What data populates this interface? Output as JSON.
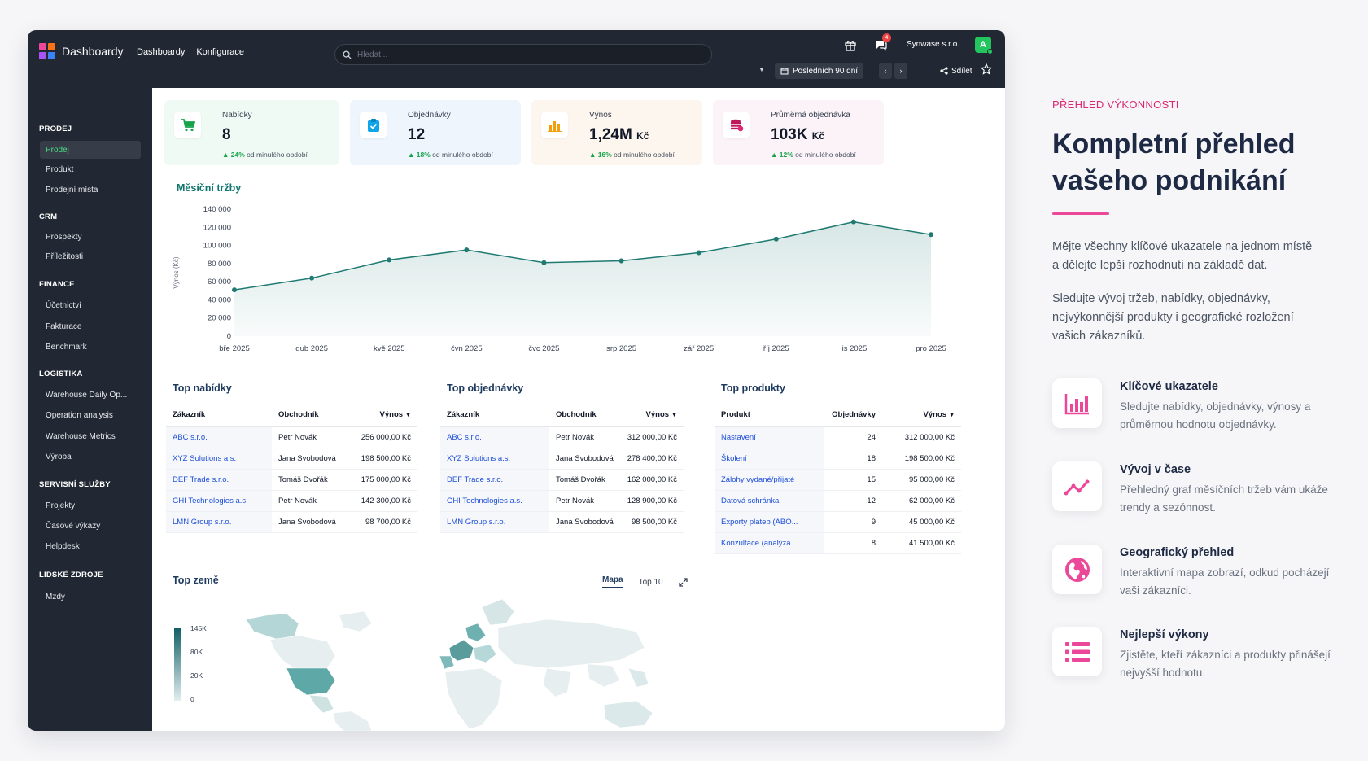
{
  "app": {
    "title": "Dashboardy",
    "nav": [
      "Dashboardy",
      "Konfigurace"
    ],
    "search_placeholder": "Hledat...",
    "messages_badge": "4",
    "company": "Synwase s.r.o.",
    "avatar_letter": "A",
    "period": "Posledních 90 dní",
    "share_label": "Sdílet"
  },
  "sidebar": {
    "groups": [
      {
        "title": "PRODEJ",
        "items": [
          "Prodej",
          "Produkt",
          "Prodejní místa"
        ]
      },
      {
        "title": "CRM",
        "items": [
          "Prospekty",
          "Příležitosti"
        ]
      },
      {
        "title": "FINANCE",
        "items": [
          "Účetnictví",
          "Fakturace",
          "Benchmark"
        ]
      },
      {
        "title": "LOGISTIKA",
        "items": [
          "Warehouse Daily Op...",
          "Operation analysis",
          "Warehouse Metrics",
          "Výroba"
        ]
      },
      {
        "title": "SERVISNÍ SLUŽBY",
        "items": [
          "Projekty",
          "Časové výkazy",
          "Helpdesk"
        ]
      },
      {
        "title": "LIDSKÉ ZDROJE",
        "items": [
          "Mzdy"
        ]
      }
    ],
    "active": "Prodej"
  },
  "kpis": [
    {
      "label": "Nabídky",
      "value": "8",
      "unit": "",
      "change": "24%",
      "change_text": "od minulého období",
      "icon": "cart-icon",
      "bg": "#eefaf3",
      "color": "#16a34a"
    },
    {
      "label": "Objednávky",
      "value": "12",
      "unit": "",
      "change": "18%",
      "change_text": "od minulého období",
      "icon": "clipboard-icon",
      "bg": "#eef5fd",
      "color": "#0ea5e9"
    },
    {
      "label": "Výnos",
      "value": "1,24M",
      "unit": "Kč",
      "change": "16%",
      "change_text": "od minulého období",
      "icon": "bar-chart-icon",
      "bg": "#fdf6ee",
      "color": "#f59e0b"
    },
    {
      "label": "Průměrná objednávka",
      "value": "103K",
      "unit": "Kč",
      "change": "12%",
      "change_text": "od minulého období",
      "icon": "coins-icon",
      "bg": "#fbf3f7",
      "color": "#be185d"
    }
  ],
  "chart_data": {
    "type": "area",
    "title": "Měsíční tržby",
    "ylabel": "Výnos (Kč)",
    "ylim": [
      0,
      140000
    ],
    "yticks": [
      "0",
      "20 000",
      "40 000",
      "60 000",
      "80 000",
      "100 000",
      "120 000",
      "140 000"
    ],
    "categories": [
      "bře 2025",
      "dub 2025",
      "kvě 2025",
      "čvn 2025",
      "čvc 2025",
      "srp 2025",
      "zář 2025",
      "říj 2025",
      "lis 2025",
      "pro 2025"
    ],
    "values": [
      51000,
      64000,
      84000,
      95000,
      81000,
      83000,
      92000,
      107000,
      126000,
      112000
    ],
    "color": "#1f7a72",
    "grid": false
  },
  "tables": {
    "offers": {
      "title": "Top nabídky",
      "headers": [
        "Zákazník",
        "Obchodník",
        "Výnos"
      ],
      "rows": [
        [
          "ABC s.r.o.",
          "Petr Novák",
          "256 000,00 Kč"
        ],
        [
          "XYZ Solutions a.s.",
          "Jana Svobodová",
          "198 500,00 Kč"
        ],
        [
          "DEF Trade s.r.o.",
          "Tomáš Dvořák",
          "175 000,00 Kč"
        ],
        [
          "GHI Technologies a.s.",
          "Petr Novák",
          "142 300,00 Kč"
        ],
        [
          "LMN Group s.r.o.",
          "Jana Svobodová",
          "98 700,00 Kč"
        ]
      ]
    },
    "orders": {
      "title": "Top objednávky",
      "headers": [
        "Zákazník",
        "Obchodník",
        "Výnos"
      ],
      "rows": [
        [
          "ABC s.r.o.",
          "Petr Novák",
          "312 000,00 Kč"
        ],
        [
          "XYZ Solutions a.s.",
          "Jana Svobodová",
          "278 400,00 Kč"
        ],
        [
          "DEF Trade s.r.o.",
          "Tomáš Dvořák",
          "162 000,00 Kč"
        ],
        [
          "GHI Technologies a.s.",
          "Petr Novák",
          "128 900,00 Kč"
        ],
        [
          "LMN Group s.r.o.",
          "Jana Svobodová",
          "98 500,00 Kč"
        ]
      ]
    },
    "products": {
      "title": "Top produkty",
      "headers": [
        "Produkt",
        "Objednávky",
        "Výnos"
      ],
      "rows": [
        [
          "Nastavení",
          "24",
          "312 000,00 Kč"
        ],
        [
          "Školení",
          "18",
          "198 500,00 Kč"
        ],
        [
          "Zálohy vydané/přijaté",
          "15",
          "95 000,00 Kč"
        ],
        [
          "Datová schránka",
          "12",
          "62 000,00 Kč"
        ],
        [
          "Exporty plateb (ABO...",
          "9",
          "45 000,00 Kč"
        ],
        [
          "Konzultace (analýza...",
          "8",
          "41 500,00 Kč"
        ]
      ]
    }
  },
  "map": {
    "title": "Top země",
    "tabs": [
      "Mapa",
      "Top 10"
    ],
    "legend": [
      "145K",
      "80K",
      "20K",
      "0"
    ]
  },
  "panel": {
    "eyebrow": "PŘEHLED VÝKONNOSTI",
    "title": "Kompletní přehled vašeho podnikání",
    "p1": "Mějte všechny klíčové ukazatele na jednom místě a dělejte lepší rozhodnutí na základě dat.",
    "p2": "Sledujte vývoj tržeb, nabídky, objednávky, nejvýkonnější produkty i geografické rozložení vašich zákazníků.",
    "features": [
      {
        "title": "Klíčové ukazatele",
        "desc": "Sledujte nabídky, objednávky, výnosy a průměrnou hodnotu objednávky.",
        "icon": "bar-chart-icon"
      },
      {
        "title": "Vývoj v čase",
        "desc": "Přehledný graf měsíčních tržeb vám ukáže trendy a sezónnost.",
        "icon": "trend-icon"
      },
      {
        "title": "Geografický přehled",
        "desc": "Interaktivní mapa zobrazí, odkud pocházejí vaši zákazníci.",
        "icon": "globe-icon"
      },
      {
        "title": "Nejlepší výkony",
        "desc": "Zjistěte, kteří zákazníci a produkty přinášejí nejvyšší hodnotu.",
        "icon": "list-icon"
      }
    ],
    "accent": "#ec4899"
  }
}
